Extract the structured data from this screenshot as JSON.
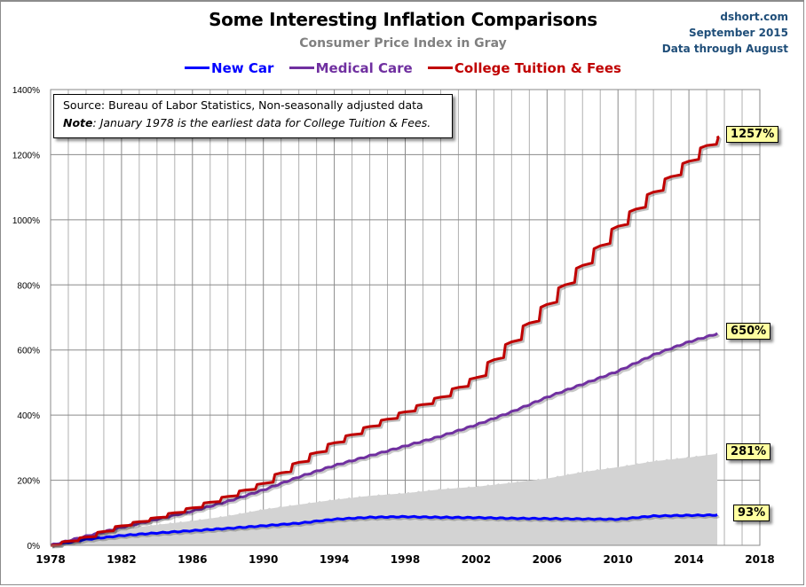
{
  "header": {
    "title": "Some Interesting Inflation Comparisons",
    "subtitle": "Consumer Price Index in Gray",
    "credit_site": "dshort.com",
    "credit_date": "September 2015",
    "credit_note": "Data through August"
  },
  "notebox": {
    "source": "Source:  Bureau  of Labor Statistics, Non-seasonally adjusted data",
    "note_label": "Note",
    "note_text": ": January  1978 is the earliest data for College Tuition & Fees."
  },
  "chart_data": {
    "type": "line",
    "title": "Some Interesting Inflation Comparisons",
    "subtitle": "Consumer Price Index in Gray",
    "xlabel": "",
    "ylabel": "",
    "xlim": [
      1978,
      2018
    ],
    "ylim": [
      0,
      1400
    ],
    "grid": true,
    "legend_position": "top-center",
    "x_ticks": [
      "1978",
      "1982",
      "1986",
      "1990",
      "1994",
      "1998",
      "2002",
      "2006",
      "2010",
      "2014",
      "2018"
    ],
    "y_ticks": [
      "0%",
      "200%",
      "400%",
      "600%",
      "800%",
      "1000%",
      "1200%",
      "1400%"
    ],
    "x": [
      1978,
      1980,
      1982,
      1984,
      1986,
      1988,
      1990,
      1992,
      1994,
      1996,
      1998,
      2000,
      2002,
      2004,
      2006,
      2008,
      2010,
      2012,
      2014,
      2015.6
    ],
    "series": [
      {
        "name": "Consumer Price Index",
        "style": "area",
        "color": "#d3d3d3",
        "values": [
          0,
          28,
          50,
          63,
          75,
          90,
          110,
          125,
          140,
          152,
          160,
          172,
          180,
          192,
          205,
          225,
          240,
          258,
          270,
          281
        ],
        "end_label": "281%"
      },
      {
        "name": "New Car",
        "style": "line",
        "color": "#0000ff",
        "values": [
          0,
          18,
          30,
          38,
          45,
          52,
          60,
          68,
          80,
          86,
          88,
          86,
          85,
          83,
          82,
          81,
          80,
          90,
          92,
          93
        ],
        "end_label": "93%"
      },
      {
        "name": "Medical Care",
        "style": "line",
        "color": "#7030a0",
        "values": [
          0,
          28,
          55,
          80,
          105,
          135,
          170,
          210,
          245,
          275,
          305,
          335,
          370,
          410,
          455,
          495,
          535,
          585,
          625,
          650
        ],
        "end_label": "650%"
      },
      {
        "name": "College Tuition & Fees",
        "style": "step",
        "color": "#c00000",
        "values": [
          0,
          25,
          60,
          85,
          115,
          150,
          190,
          255,
          315,
          365,
          410,
          455,
          515,
          625,
          740,
          860,
          980,
          1085,
          1180,
          1257
        ],
        "end_label": "1257%"
      }
    ]
  },
  "legend": [
    {
      "label": "New Car",
      "color": "#0000ff"
    },
    {
      "label": "Medical Care",
      "color": "#7030a0"
    },
    {
      "label": "College Tuition & Fees",
      "color": "#c00000"
    }
  ]
}
